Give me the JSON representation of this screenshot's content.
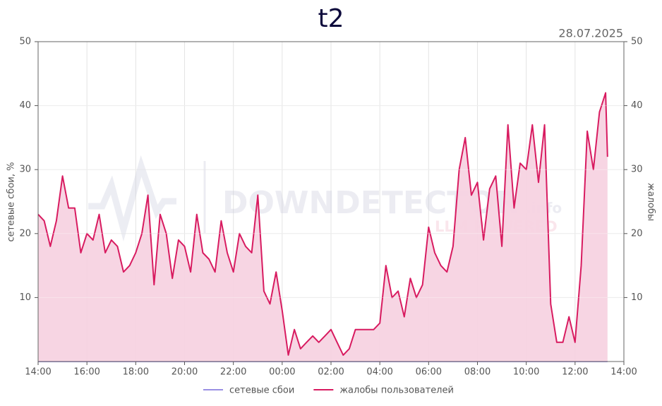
{
  "chart_data": {
    "type": "line",
    "title": "t2",
    "subtitle": "28.07.2025",
    "ylabel": "сетевые сбои, %",
    "y2label": "жалобы",
    "watermark": "DOWNDETECTOR",
    "watermark_suffix": ".info",
    "watermark_sub": "LLM POWERED",
    "xlim": [
      0,
      24
    ],
    "xticks": [
      {
        "value": 0,
        "label": "14:00"
      },
      {
        "value": 2,
        "label": "16:00"
      },
      {
        "value": 4,
        "label": "18:00"
      },
      {
        "value": 6,
        "label": "20:00"
      },
      {
        "value": 8,
        "label": "22:00"
      },
      {
        "value": 10,
        "label": "00:00"
      },
      {
        "value": 12,
        "label": "02:00"
      },
      {
        "value": 14,
        "label": "04:00"
      },
      {
        "value": 16,
        "label": "06:00"
      },
      {
        "value": 18,
        "label": "08:00"
      },
      {
        "value": 20,
        "label": "10:00"
      },
      {
        "value": 22,
        "label": "12:00"
      },
      {
        "value": 24,
        "label": "14:00"
      }
    ],
    "ylim": [
      0,
      50
    ],
    "yticks": [
      10,
      20,
      30,
      40,
      50
    ],
    "y2lim": [
      0,
      50
    ],
    "y2ticks": [
      10,
      20,
      30,
      40,
      50
    ],
    "grid": true,
    "legend": "bottom",
    "x": [
      0,
      0.25,
      0.5,
      0.75,
      1,
      1.25,
      1.5,
      1.75,
      2,
      2.25,
      2.5,
      2.75,
      3,
      3.25,
      3.5,
      3.75,
      4,
      4.25,
      4.5,
      4.75,
      5,
      5.25,
      5.5,
      5.75,
      6,
      6.25,
      6.5,
      6.75,
      7,
      7.25,
      7.5,
      7.75,
      8,
      8.25,
      8.5,
      8.75,
      9,
      9.25,
      9.5,
      9.75,
      10,
      10.25,
      10.5,
      10.75,
      11,
      11.25,
      11.5,
      11.75,
      12,
      12.25,
      12.5,
      12.75,
      13,
      13.25,
      13.5,
      13.75,
      14,
      14.25,
      14.5,
      14.75,
      15,
      15.25,
      15.5,
      15.75,
      16,
      16.25,
      16.5,
      16.75,
      17,
      17.25,
      17.5,
      17.75,
      18,
      18.25,
      18.5,
      18.75,
      19,
      19.25,
      19.5,
      19.75,
      20,
      20.25,
      20.5,
      20.75,
      21,
      21.25,
      21.5,
      21.75,
      22,
      22.25,
      22.5,
      22.75,
      23,
      23.25,
      23.33
    ],
    "series": [
      {
        "name": "сетевые сбои",
        "color": "#9a8fe3",
        "fill": false,
        "values": [
          0,
          0,
          0,
          0,
          0,
          0,
          0,
          0,
          0,
          0,
          0,
          0,
          0,
          0,
          0,
          0,
          0,
          0,
          0,
          0,
          0,
          0,
          0,
          0,
          0,
          0,
          0,
          0,
          0,
          0,
          0,
          0,
          0,
          0,
          0,
          0,
          0,
          0,
          0,
          0,
          0,
          0,
          0,
          0,
          0,
          0,
          0,
          0,
          0,
          0,
          0,
          0,
          0,
          0,
          0,
          0,
          0,
          0,
          0,
          0,
          0,
          0,
          0,
          0,
          0,
          0,
          0,
          0,
          0,
          0,
          0,
          0,
          0,
          0,
          0,
          0,
          0,
          0,
          0,
          0,
          0,
          0,
          0,
          0,
          0,
          0,
          0,
          0,
          0,
          0,
          0,
          0,
          0,
          0,
          0
        ]
      },
      {
        "name": "жалобы пользователей",
        "color": "#d81b60",
        "fill": true,
        "fill_color": "#f7d3e1",
        "axis": "y2",
        "values": [
          23,
          22,
          18,
          22,
          29,
          24,
          24,
          17,
          20,
          19,
          23,
          17,
          19,
          18,
          14,
          15,
          17,
          20,
          26,
          12,
          23,
          20,
          13,
          19,
          18,
          14,
          23,
          17,
          16,
          14,
          22,
          17,
          14,
          20,
          18,
          17,
          26,
          11,
          9,
          14,
          8,
          1,
          5,
          2,
          3,
          4,
          3,
          4,
          5,
          3,
          1,
          2,
          5,
          5,
          5,
          5,
          6,
          15,
          10,
          11,
          7,
          13,
          10,
          12,
          21,
          17,
          15,
          14,
          18,
          30,
          35,
          26,
          28,
          19,
          27,
          29,
          18,
          37,
          24,
          31,
          30,
          37,
          28,
          37,
          9,
          3,
          3,
          7,
          3,
          15,
          36,
          30,
          39,
          42,
          32
        ]
      }
    ]
  }
}
